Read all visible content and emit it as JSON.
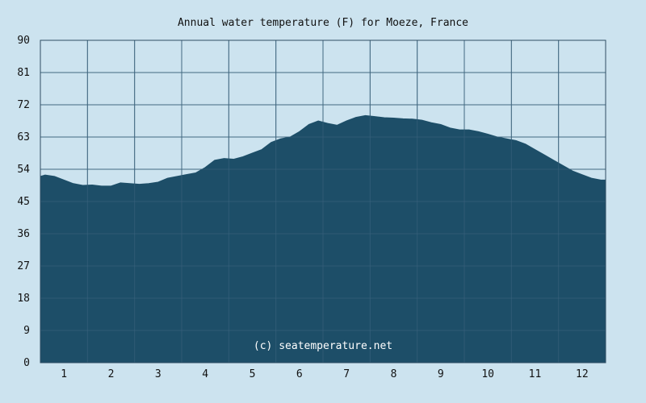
{
  "chart_data": {
    "type": "area",
    "title": "Annual water temperature (F) for Moeze, France",
    "xlabel": "",
    "ylabel": "",
    "ylim": [
      0,
      90
    ],
    "xlim": [
      0.5,
      12.5
    ],
    "yticks": [
      "0",
      "9",
      "18",
      "27",
      "36",
      "45",
      "54",
      "63",
      "72",
      "81",
      "90"
    ],
    "xticks": [
      "1",
      "2",
      "3",
      "4",
      "5",
      "6",
      "7",
      "8",
      "9",
      "10",
      "11",
      "12"
    ],
    "grid": true,
    "watermark": "(c) seatemperature.net",
    "colors": {
      "background": "#cce3ef",
      "fill": "#1d4e68",
      "grid": "#4a6e84"
    },
    "series": [
      {
        "x": [
          0.5,
          0.6,
          0.8,
          1.0,
          1.2,
          1.4,
          1.6,
          1.8,
          2.0,
          2.2,
          2.4,
          2.6,
          2.8,
          3.0,
          3.2,
          3.4,
          3.6,
          3.8,
          4.0,
          4.2,
          4.4,
          4.6,
          4.8,
          5.0,
          5.2,
          5.4,
          5.6,
          5.8,
          6.0,
          6.2,
          6.4,
          6.6,
          6.8,
          7.0,
          7.2,
          7.4,
          7.6,
          7.8,
          8.0,
          8.2,
          8.4,
          8.6,
          8.8,
          9.0,
          9.2,
          9.4,
          9.6,
          9.8,
          10.0,
          10.2,
          10.4,
          10.6,
          10.8,
          11.0,
          11.2,
          11.4,
          11.6,
          11.8,
          12.0,
          12.2,
          12.4,
          12.5
        ],
        "y": [
          52.0,
          52.4,
          52.0,
          51.0,
          50.0,
          49.5,
          49.6,
          49.3,
          49.3,
          50.2,
          50.0,
          49.8,
          50.0,
          50.4,
          51.5,
          52.0,
          52.5,
          53.0,
          54.5,
          56.5,
          57.0,
          56.8,
          57.5,
          58.5,
          59.5,
          61.5,
          62.5,
          63.0,
          64.5,
          66.5,
          67.5,
          66.8,
          66.3,
          67.5,
          68.5,
          69.0,
          68.7,
          68.4,
          68.3,
          68.1,
          68.0,
          67.7,
          67.0,
          66.5,
          65.5,
          65.0,
          65.0,
          64.5,
          63.8,
          63.0,
          62.5,
          62.0,
          61.0,
          59.5,
          58.0,
          56.5,
          55.0,
          53.5,
          52.5,
          51.5,
          51.0,
          51.0
        ]
      }
    ]
  }
}
